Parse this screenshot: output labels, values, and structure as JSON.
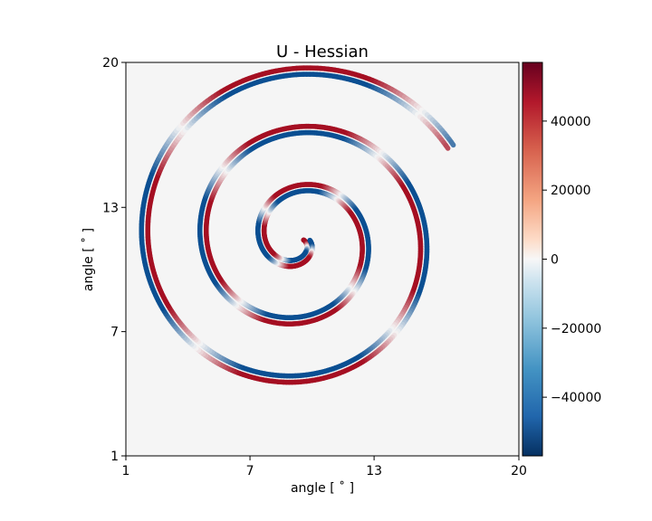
{
  "chart_data": {
    "type": "heatmap",
    "title": "U - Hessian",
    "xlabel": "angle [$^\\circ$]",
    "ylabel": "angle [$^\\circ$]",
    "xlabel_display": "angle [ ˚ ]",
    "ylabel_display": "angle [ ˚ ]",
    "xlim": [
      1,
      20
    ],
    "ylim": [
      1,
      20
    ],
    "xticks": [
      1,
      7,
      13,
      20
    ],
    "yticks": [
      1,
      7,
      13,
      20
    ],
    "x_tick_labels": [
      "1",
      "7",
      "13",
      "20"
    ],
    "y_tick_labels": [
      "1",
      "7",
      "13",
      "20"
    ],
    "colorbar": {
      "colormap": "RdBu_r",
      "vmin": -57000,
      "vmax": 57000,
      "ticks": [
        40000,
        20000,
        0,
        -20000,
        -40000
      ],
      "tick_labels": [
        "40000",
        "20000",
        "0",
        "−20000",
        "−40000"
      ]
    },
    "description_values": {
      "background_value": 0,
      "pattern": "spiral",
      "spiral_center": [
        9.5,
        10.5
      ],
      "spiral_turns": 3
    },
    "colors": {
      "positive": "#a50f22",
      "negative": "#0b4f92",
      "zero": "#f7f7f7"
    }
  }
}
